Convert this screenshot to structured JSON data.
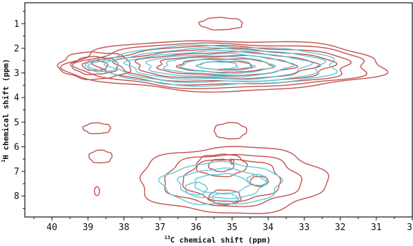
{
  "colors": {
    "series_red": "#c0504d",
    "series_cyan": "#62c6d8",
    "axis": "#111111",
    "background": "#ffffff"
  },
  "chart_data": {
    "type": "contour",
    "title": "",
    "xlabel": {
      "superscript": "13",
      "text": "C chemical shift (ppm)"
    },
    "ylabel": {
      "superscript": "1",
      "text": "H chemical shift (ppm)"
    },
    "x_axis": {
      "reversed": true,
      "range": [
        40.75,
        30.0
      ],
      "ticks": [
        40,
        39,
        38,
        37,
        36,
        35,
        34,
        33,
        32,
        31,
        30
      ],
      "tick_labels": [
        "40",
        "39",
        "38",
        "37",
        "36",
        "35",
        "34",
        "33",
        "32",
        "31",
        "30"
      ]
    },
    "y_axis": {
      "reversed": true,
      "range": [
        0.15,
        8.85
      ],
      "ticks": [
        1,
        2,
        3,
        4,
        5,
        6,
        7,
        8
      ],
      "tick_labels": [
        "1",
        "2",
        "3",
        "4",
        "5",
        "6",
        "7",
        "8"
      ]
    },
    "grid": false,
    "legend": "none",
    "series": [
      {
        "color_key": "series_red",
        "peaks": [
          {
            "center": [
              35.2,
              2.7
            ],
            "levels": [
              [
                4.4,
                1.02
              ],
              [
                4.0,
                0.9
              ],
              [
                3.5,
                0.78
              ],
              [
                3.0,
                0.66
              ],
              [
                2.5,
                0.53
              ],
              [
                1.9,
                0.4
              ],
              [
                1.3,
                0.28
              ],
              [
                0.75,
                0.17
              ]
            ]
          },
          {
            "center": [
              38.8,
              2.7
            ],
            "levels": [
              [
                1.0,
                0.55
              ],
              [
                0.65,
                0.36
              ],
              [
                0.35,
                0.2
              ]
            ]
          },
          {
            "center": [
              35.3,
              1.0
            ],
            "levels": [
              [
                0.6,
                0.25
              ]
            ]
          },
          {
            "center": [
              38.75,
              5.25
            ],
            "levels": [
              [
                0.38,
                0.22
              ]
            ]
          },
          {
            "center": [
              38.65,
              6.4
            ],
            "levels": [
              [
                0.32,
                0.26
              ]
            ]
          },
          {
            "center": [
              38.75,
              7.8
            ],
            "levels": [
              [
                0.07,
                0.18
              ]
            ]
          },
          {
            "center": [
              35.05,
              5.35
            ],
            "levels": [
              [
                0.45,
                0.33
              ]
            ]
          },
          {
            "center": [
              35.0,
              7.35
            ],
            "levels": [
              [
                2.6,
                1.35
              ],
              [
                1.9,
                1.05
              ],
              [
                1.35,
                0.85
              ]
            ]
          },
          {
            "center": [
              35.3,
              6.75
            ],
            "levels": [
              [
                0.7,
                0.45
              ],
              [
                0.35,
                0.25
              ]
            ]
          },
          {
            "center": [
              34.25,
              7.4
            ],
            "levels": [
              [
                0.25,
                0.2
              ]
            ]
          },
          {
            "center": [
              35.2,
              8.05
            ],
            "levels": [
              [
                0.45,
                0.3
              ]
            ]
          },
          {
            "center": [
              35.0,
              6.6
            ],
            "levels": [
              [
                0.05,
                0.1
              ]
            ]
          }
        ]
      },
      {
        "color_key": "series_cyan",
        "peaks": [
          {
            "center": [
              35.4,
              2.7
            ],
            "levels": [
              [
                3.35,
                0.8
              ],
              [
                2.95,
                0.68
              ],
              [
                2.5,
                0.57
              ],
              [
                2.0,
                0.46
              ],
              [
                1.5,
                0.35
              ],
              [
                1.0,
                0.25
              ],
              [
                0.55,
                0.15
              ]
            ]
          },
          {
            "center": [
              38.6,
              2.7
            ],
            "levels": [
              [
                0.45,
                0.25
              ]
            ]
          },
          {
            "center": [
              35.3,
              7.5
            ],
            "levels": [
              [
                1.65,
                0.85
              ],
              [
                1.2,
                0.6
              ],
              [
                0.75,
                0.4
              ]
            ]
          },
          {
            "center": [
              34.3,
              7.35
            ],
            "levels": [
              [
                0.28,
                0.22
              ]
            ]
          },
          {
            "center": [
              36.0,
              7.7
            ],
            "levels": [
              [
                0.3,
                0.25
              ]
            ]
          },
          {
            "center": [
              35.2,
              8.1
            ],
            "levels": [
              [
                0.35,
                0.22
              ]
            ]
          }
        ]
      }
    ]
  }
}
